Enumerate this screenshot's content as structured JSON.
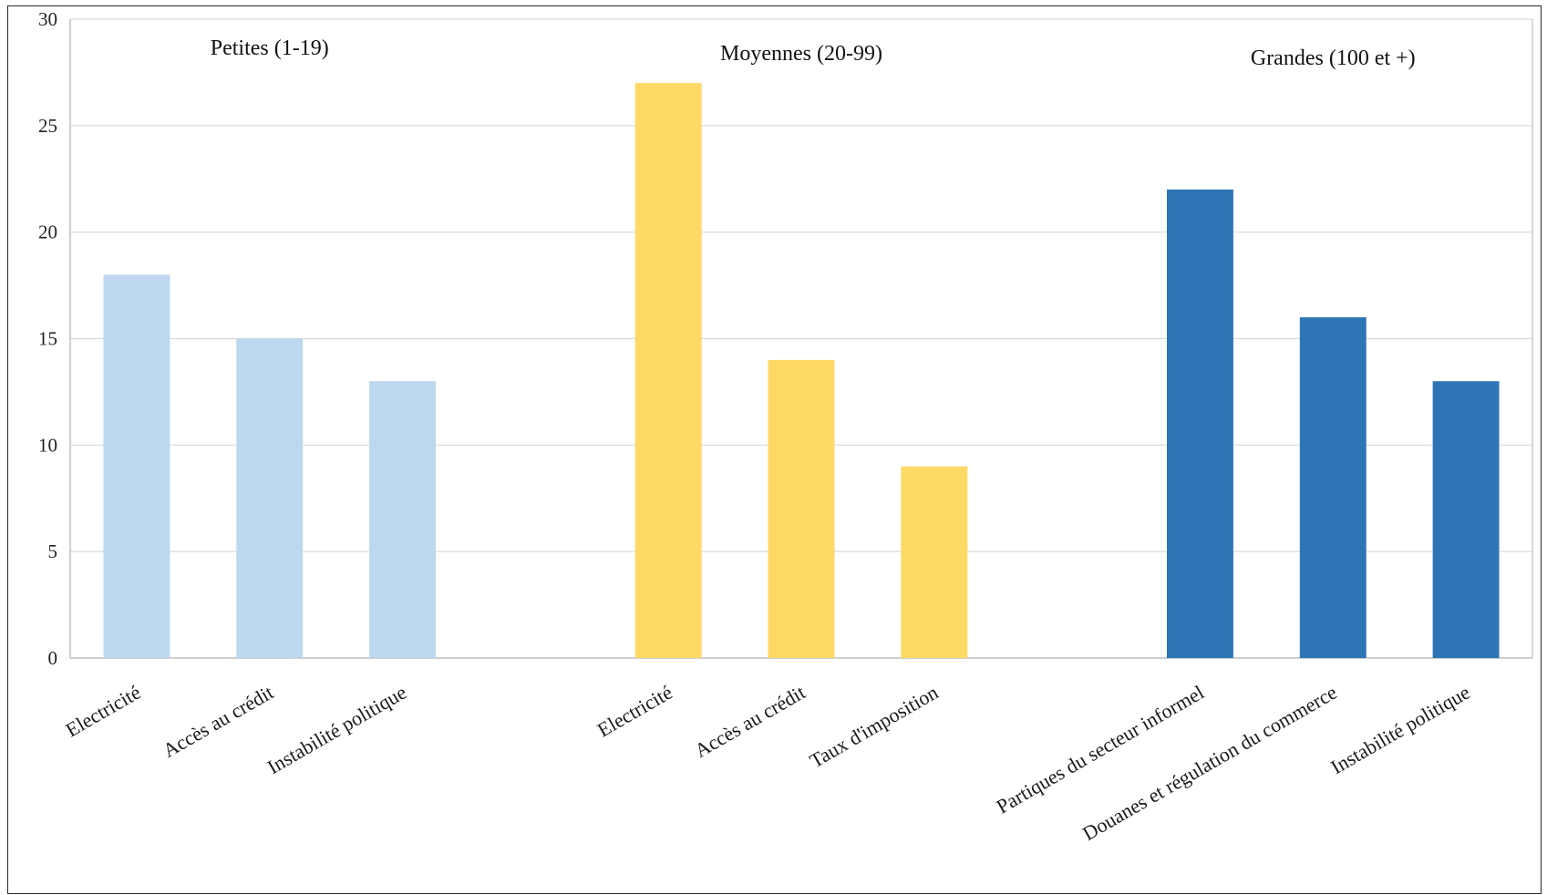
{
  "chart_data": {
    "type": "bar",
    "ylim": [
      0,
      30
    ],
    "y_ticks": [
      0,
      5,
      10,
      15,
      20,
      25,
      30
    ],
    "grid": true,
    "groups": [
      {
        "name": "Petites (1-19)",
        "color": "#BDD7EE",
        "categories": [
          "Electricité",
          "Accès au crédit",
          "Instabilité politique"
        ],
        "values": [
          18,
          15,
          13
        ]
      },
      {
        "name": "Moyennes (20-99)",
        "color": "#FFD966",
        "categories": [
          "Electricité",
          "Accès au crédit",
          "Taux d'imposition"
        ],
        "values": [
          27,
          14,
          9
        ]
      },
      {
        "name": "Grandes (100 et +)",
        "color": "#2E75B6",
        "categories": [
          "Partiques du secteur informel",
          "Douanes et régulation du commerce",
          "Instabilité politique"
        ],
        "values": [
          22,
          16,
          13
        ]
      }
    ]
  }
}
